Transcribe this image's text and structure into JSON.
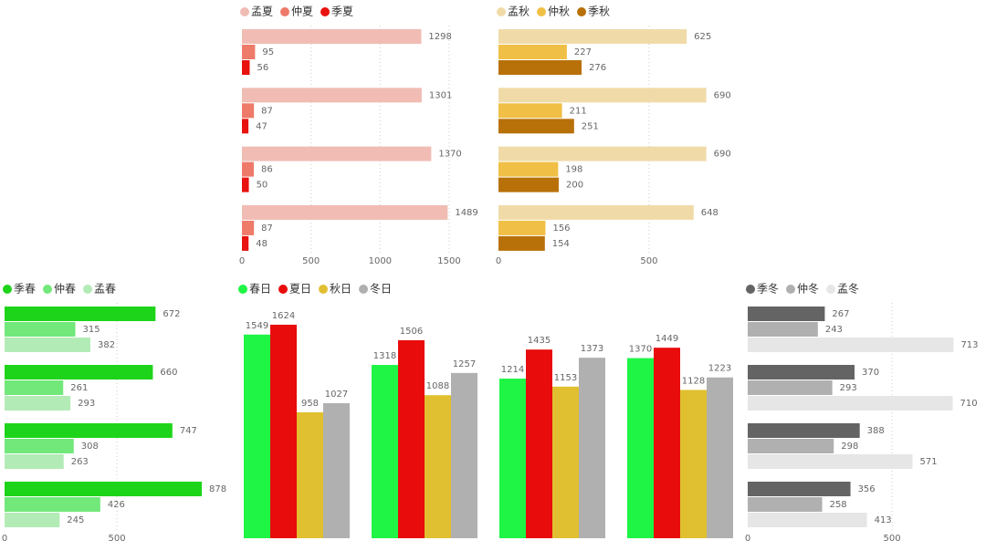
{
  "chart_data": [
    {
      "type": "hbar",
      "xlim": [
        0,
        1685
      ],
      "xticks": [
        0,
        500,
        1000,
        1500
      ],
      "grid": true,
      "series": [
        {
          "name": "孟夏",
          "color": "#f0bcb3",
          "values": [
            1298,
            1301,
            1370,
            1489
          ]
        },
        {
          "name": "仲夏",
          "color": "#ee7a6a",
          "values": [
            95,
            87,
            86,
            87
          ]
        },
        {
          "name": "季夏",
          "color": "#e8120e",
          "values": [
            56,
            47,
            50,
            48
          ]
        }
      ]
    },
    {
      "type": "hbar",
      "xlim": [
        0,
        770
      ],
      "xticks": [
        0,
        500
      ],
      "grid": true,
      "series": [
        {
          "name": "孟秋",
          "color": "#f0dba8",
          "values": [
            625,
            690,
            690,
            648
          ]
        },
        {
          "name": "仲秋",
          "color": "#f0bf45",
          "values": [
            227,
            211,
            198,
            156
          ]
        },
        {
          "name": "季秋",
          "color": "#b87008",
          "values": [
            276,
            251,
            200,
            154
          ]
        }
      ]
    },
    {
      "type": "hbar",
      "xlim": [
        0,
        955
      ],
      "xticks": [
        0,
        500
      ],
      "grid": true,
      "series": [
        {
          "name": "季春",
          "color": "#1ed41a",
          "values": [
            672,
            660,
            747,
            878
          ]
        },
        {
          "name": "仲春",
          "color": "#72e87a",
          "values": [
            315,
            261,
            308,
            426
          ]
        },
        {
          "name": "孟春",
          "color": "#b3ebb6",
          "values": [
            382,
            293,
            263,
            245
          ]
        }
      ]
    },
    {
      "type": "column",
      "ylim": [
        0,
        1700
      ],
      "series": [
        {
          "name": "春日",
          "color": "#1ef545",
          "values": [
            1549,
            1318,
            1214,
            1370
          ]
        },
        {
          "name": "夏日",
          "color": "#e80c0c",
          "values": [
            1624,
            1506,
            1435,
            1449
          ]
        },
        {
          "name": "秋日",
          "color": "#e0c030",
          "values": [
            958,
            1088,
            1153,
            1128
          ]
        },
        {
          "name": "冬日",
          "color": "#b0b0b0",
          "values": [
            1027,
            1257,
            1373,
            1223
          ]
        }
      ]
    },
    {
      "type": "hbar",
      "xlim": [
        0,
        778
      ],
      "xticks": [
        0,
        500
      ],
      "grid": true,
      "series": [
        {
          "name": "季冬",
          "color": "#646464",
          "values": [
            267,
            370,
            388,
            356
          ]
        },
        {
          "name": "仲冬",
          "color": "#b0b0b0",
          "values": [
            243,
            293,
            298,
            258
          ]
        },
        {
          "name": "孟冬",
          "color": "#e6e6e6",
          "values": [
            713,
            710,
            571,
            413
          ]
        }
      ]
    }
  ]
}
